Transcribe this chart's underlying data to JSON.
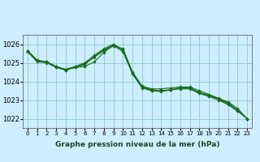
{
  "title": "Graphe pression niveau de la mer (hPa)",
  "background_color": "#cceeff",
  "grid_color": "#99cccc",
  "line_color": "#1a6b1a",
  "label_bg_color": "#cceeff",
  "xlim": [
    -0.5,
    23.5
  ],
  "ylim": [
    1021.5,
    1026.5
  ],
  "yticks": [
    1022,
    1023,
    1024,
    1025,
    1026
  ],
  "xticks": [
    0,
    1,
    2,
    3,
    4,
    5,
    6,
    7,
    8,
    9,
    10,
    11,
    12,
    13,
    14,
    15,
    16,
    17,
    18,
    19,
    20,
    21,
    22,
    23
  ],
  "series": [
    [
      1025.65,
      1025.15,
      1025.05,
      1024.8,
      1024.65,
      1024.75,
      1024.8,
      1025.05,
      1025.55,
      1025.95,
      1025.75,
      1024.5,
      1023.75,
      1023.6,
      1023.6,
      1023.65,
      1023.7,
      1023.7,
      1023.5,
      1023.3,
      1023.1,
      1022.9,
      1022.55,
      1022.0
    ],
    [
      1025.65,
      1025.1,
      1025.05,
      1024.8,
      1024.6,
      1024.8,
      1025.0,
      1025.4,
      1025.75,
      1026.0,
      1025.7,
      1024.45,
      1023.7,
      1023.55,
      1023.5,
      1023.55,
      1023.65,
      1023.65,
      1023.4,
      1023.25,
      1023.05,
      1022.85,
      1022.45,
      1022.0
    ],
    [
      1025.6,
      1025.05,
      1025.0,
      1024.75,
      1024.6,
      1024.75,
      1024.9,
      1025.35,
      1025.7,
      1025.95,
      1025.6,
      1024.4,
      1023.7,
      1023.5,
      1023.5,
      1023.55,
      1023.65,
      1023.65,
      1023.4,
      1023.25,
      1023.05,
      1022.8,
      1022.45,
      1022.0
    ],
    [
      1025.65,
      1025.1,
      1025.05,
      1024.75,
      1024.65,
      1024.8,
      1024.95,
      1025.3,
      1025.65,
      1025.9,
      1025.65,
      1024.4,
      1023.65,
      1023.5,
      1023.45,
      1023.55,
      1023.6,
      1023.6,
      1023.35,
      1023.2,
      1023.0,
      1022.75,
      1022.4,
      1022.0
    ]
  ]
}
